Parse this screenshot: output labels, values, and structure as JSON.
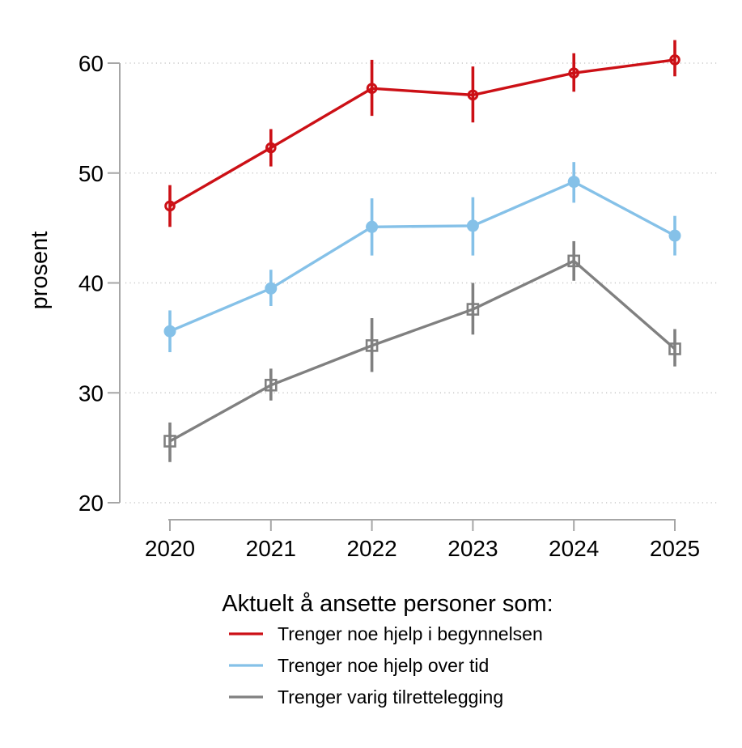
{
  "chart_data": {
    "type": "line",
    "title": "",
    "ylabel": "prosent",
    "xlabel": "",
    "x_categories": [
      "2020",
      "2021",
      "2022",
      "2023",
      "2024",
      "2025"
    ],
    "y_ticks": [
      20,
      30,
      40,
      50,
      60
    ],
    "ylim": [
      20,
      63
    ],
    "grid": "dotted-horizontal",
    "legend_title": "Aktuelt å ansette personer som:",
    "legend_position": "bottom",
    "error_bars": true,
    "axis_color": "#a6a6a6",
    "grid_color": "#c8c8c8",
    "series": [
      {
        "name": "Trenger noe hjelp i begynnelsen",
        "color": "#cc1016",
        "marker": "open-circle",
        "values": [
          47.0,
          52.3,
          57.7,
          57.1,
          59.1,
          60.3
        ],
        "ci_low": [
          45.1,
          50.6,
          55.2,
          54.6,
          57.4,
          58.8
        ],
        "ci_high": [
          48.9,
          54.0,
          60.3,
          59.7,
          60.9,
          62.1
        ]
      },
      {
        "name": "Trenger noe hjelp over tid",
        "color": "#85c1e8",
        "marker": "filled-circle",
        "values": [
          35.6,
          39.5,
          45.1,
          45.2,
          49.2,
          44.3
        ],
        "ci_low": [
          33.7,
          37.9,
          42.5,
          42.5,
          47.3,
          42.5
        ],
        "ci_high": [
          37.5,
          41.2,
          47.7,
          47.8,
          51.0,
          46.1
        ]
      },
      {
        "name": "Trenger varig tilrettelegging",
        "color": "#808080",
        "marker": "open-square",
        "values": [
          25.6,
          30.7,
          34.3,
          37.6,
          42.0,
          34.0
        ],
        "ci_low": [
          23.7,
          29.3,
          31.9,
          35.3,
          40.2,
          32.4
        ],
        "ci_high": [
          27.3,
          32.2,
          36.8,
          40.0,
          43.8,
          35.8
        ]
      }
    ]
  }
}
